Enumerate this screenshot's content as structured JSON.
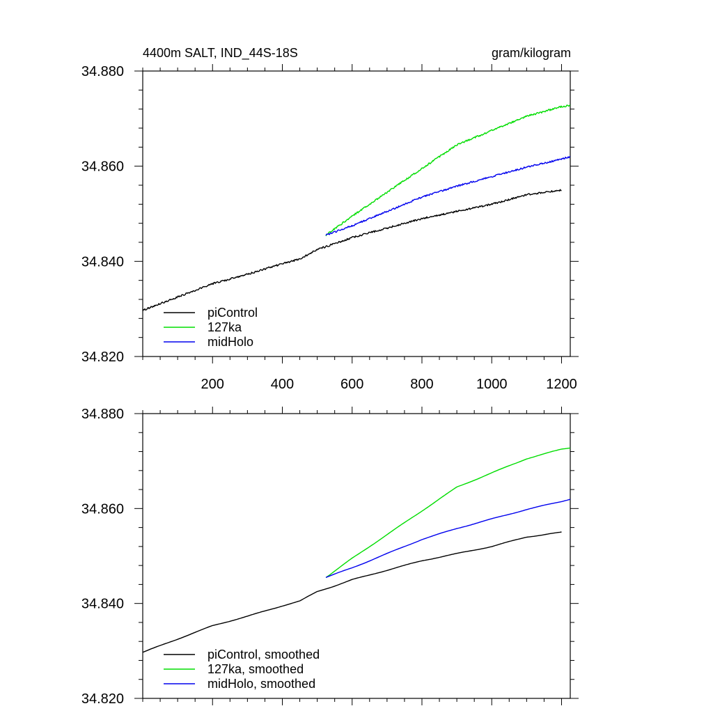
{
  "chart_data": [
    {
      "type": "line",
      "title": "4400m SALT, IND_44S-18S",
      "units_label": "gram/kilogram",
      "xlim": [
        0,
        1225
      ],
      "ylim": [
        34.82,
        34.88
      ],
      "xticks": [
        200,
        400,
        600,
        800,
        1000,
        1200
      ],
      "xtick_labels": [
        "200",
        "400",
        "600",
        "800",
        "1000",
        "1200"
      ],
      "yticks": [
        34.82,
        34.84,
        34.86,
        34.88
      ],
      "ytick_labels": [
        "34.820",
        "34.840",
        "34.860",
        "34.880"
      ],
      "legend_position": "bottom-left",
      "series": [
        {
          "name": "piControl",
          "color": "#000000",
          "x": [
            0,
            100,
            200,
            300,
            400,
            450,
            500,
            550,
            600,
            700,
            800,
            900,
            1000,
            1100,
            1200
          ],
          "y": [
            34.8297,
            34.8325,
            34.8353,
            34.8373,
            34.8395,
            34.8405,
            34.8425,
            34.8437,
            34.845,
            34.847,
            34.849,
            34.8505,
            34.852,
            34.854,
            34.855
          ]
        },
        {
          "name": "127ka",
          "color": "#00dd00",
          "x": [
            525,
            600,
            700,
            800,
            900,
            1000,
            1100,
            1200,
            1225
          ],
          "y": [
            34.8455,
            34.8495,
            34.8545,
            34.8595,
            34.8645,
            34.8675,
            34.8705,
            34.8725,
            34.8728
          ]
        },
        {
          "name": "midHolo",
          "color": "#0000ee",
          "x": [
            525,
            600,
            700,
            800,
            900,
            1000,
            1100,
            1200,
            1225
          ],
          "y": [
            34.8455,
            34.8475,
            34.8505,
            34.8535,
            34.8558,
            34.8578,
            34.8598,
            34.8615,
            34.862
          ]
        }
      ]
    },
    {
      "type": "line",
      "title": "",
      "units_label": "",
      "xlim": [
        0,
        1225
      ],
      "ylim": [
        34.82,
        34.88
      ],
      "xticks": [
        200,
        400,
        600,
        800,
        1000,
        1200
      ],
      "xtick_labels": [],
      "yticks": [
        34.82,
        34.84,
        34.86,
        34.88
      ],
      "ytick_labels": [
        "34.820",
        "34.840",
        "34.860",
        "34.880"
      ],
      "legend_position": "bottom-left",
      "series": [
        {
          "name": "piControl, smoothed",
          "color": "#000000",
          "x": [
            0,
            100,
            200,
            300,
            400,
            450,
            500,
            550,
            600,
            700,
            800,
            900,
            1000,
            1100,
            1200
          ],
          "y": [
            34.8297,
            34.8325,
            34.8353,
            34.8373,
            34.8395,
            34.8405,
            34.8425,
            34.8437,
            34.845,
            34.847,
            34.849,
            34.8505,
            34.852,
            34.854,
            34.855
          ]
        },
        {
          "name": "127ka, smoothed",
          "color": "#00dd00",
          "x": [
            525,
            600,
            700,
            800,
            900,
            1000,
            1100,
            1200,
            1225
          ],
          "y": [
            34.8455,
            34.8495,
            34.8545,
            34.8595,
            34.8645,
            34.8675,
            34.8705,
            34.8725,
            34.8728
          ]
        },
        {
          "name": "midHolo, smoothed",
          "color": "#0000ee",
          "x": [
            525,
            600,
            700,
            800,
            900,
            1000,
            1100,
            1200,
            1225
          ],
          "y": [
            34.8455,
            34.8475,
            34.8505,
            34.8535,
            34.8558,
            34.8578,
            34.8598,
            34.8615,
            34.862
          ]
        }
      ]
    }
  ]
}
